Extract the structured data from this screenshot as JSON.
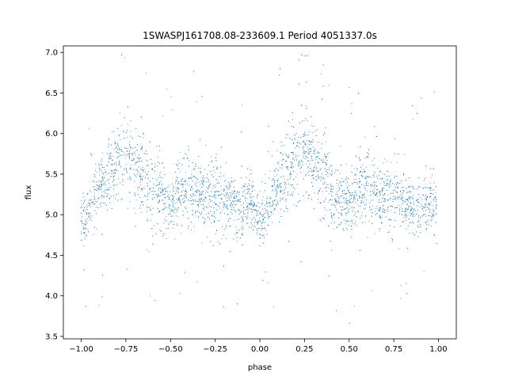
{
  "chart_data": {
    "type": "scatter",
    "title": "1SWASPJ161708.08-233609.1 Period 4051337.0s",
    "xlabel": "phase",
    "ylabel": "flux",
    "xlim": [
      -1.1,
      1.1
    ],
    "ylim": [
      3.47,
      7.08
    ],
    "xticks": [
      -1.0,
      -0.75,
      -0.5,
      -0.25,
      0.0,
      0.25,
      0.5,
      0.75,
      1.0
    ],
    "xtick_labels": [
      "−1.00",
      "−0.75",
      "−0.50",
      "−0.25",
      "0.00",
      "0.25",
      "0.50",
      "0.75",
      "1.00"
    ],
    "yticks": [
      3.5,
      4.0,
      4.5,
      5.0,
      5.5,
      6.0,
      6.5,
      7.0
    ],
    "ytick_labels": [
      "3.5",
      "4.0",
      "4.5",
      "5.0",
      "5.5",
      "6.0",
      "6.5",
      "7.0"
    ],
    "grid": false,
    "marker_color": "#1f77b4",
    "phase_profile": {
      "phase": [
        0.0,
        0.05,
        0.1,
        0.15,
        0.2,
        0.25,
        0.3,
        0.35,
        0.4,
        0.45,
        0.5,
        0.55,
        0.6,
        0.65,
        0.7,
        0.75,
        0.8,
        0.85,
        0.9,
        0.95,
        1.0
      ],
      "flux": [
        4.9,
        5.1,
        5.35,
        5.5,
        5.65,
        5.75,
        5.6,
        5.5,
        5.3,
        5.2,
        5.15,
        5.3,
        5.35,
        5.25,
        5.2,
        5.25,
        5.15,
        5.1,
        5.05,
        5.2,
        4.95
      ],
      "spread": [
        0.2,
        0.2,
        0.25,
        0.3,
        0.3,
        0.3,
        0.3,
        0.35,
        0.3,
        0.25,
        0.2,
        0.25,
        0.3,
        0.25,
        0.25,
        0.3,
        0.25,
        0.2,
        0.2,
        0.25,
        0.2
      ]
    },
    "repeated_phase_range": [
      -1.0,
      1.0
    ]
  }
}
